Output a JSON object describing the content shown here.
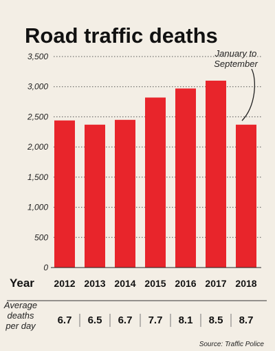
{
  "chart_data": {
    "type": "bar",
    "title": "Road traffic deaths",
    "x_label": "Year",
    "categories": [
      "2012",
      "2013",
      "2014",
      "2015",
      "2016",
      "2017",
      "2018"
    ],
    "values": [
      2440,
      2370,
      2450,
      2820,
      2970,
      3100,
      2370
    ],
    "ylim": [
      0,
      3500
    ],
    "y_ticks": [
      "0",
      "500",
      "1,000",
      "1,500",
      "2,000",
      "2,500",
      "3,000",
      "3,500"
    ],
    "grid": "dotted horizontal",
    "bar_color": "#e8252b",
    "annotation": [
      "January to",
      "September"
    ],
    "avg_label": [
      "Average",
      "deaths",
      "per day"
    ],
    "avg_values": [
      "6.7",
      "6.5",
      "6.7",
      "7.7",
      "8.1",
      "8.5",
      "8.7"
    ],
    "source": "Source: Traffic Police"
  }
}
